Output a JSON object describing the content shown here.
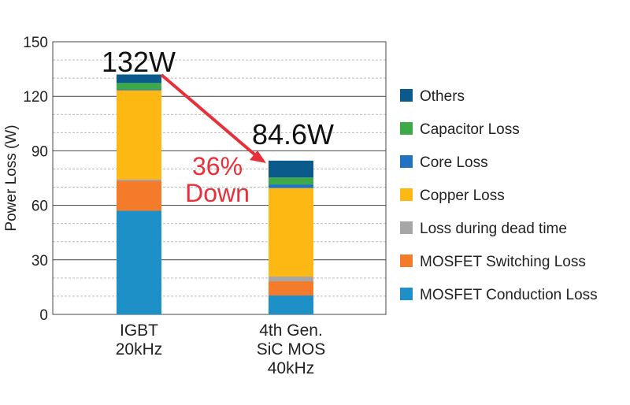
{
  "chart_data": {
    "type": "bar",
    "stacked": true,
    "ylabel": "Power Loss (W)",
    "ylim": [
      0,
      150
    ],
    "yticks": [
      0,
      30,
      60,
      90,
      120,
      150
    ],
    "categories": [
      [
        "IGBT",
        "20kHz"
      ],
      [
        "4th Gen.",
        "SiC MOS",
        "40kHz"
      ]
    ],
    "totals_labels": [
      "132W",
      "84.6W"
    ],
    "annotation": [
      "36%",
      "Down"
    ],
    "legend_position": "right",
    "series": [
      {
        "name": "MOSFET Conduction Loss",
        "color": "#1e90c8",
        "values": [
          57,
          10.4
        ]
      },
      {
        "name": "MOSFET Switching Loss",
        "color": "#f47b2a",
        "values": [
          16.5,
          7.8
        ]
      },
      {
        "name": "Loss during dead time",
        "color": "#a6a6a6",
        "values": [
          0.8,
          2.6
        ]
      },
      {
        "name": "Copper Loss",
        "color": "#fdb813",
        "values": [
          49,
          48.7
        ]
      },
      {
        "name": "Core Loss",
        "color": "#2173c2",
        "values": [
          0.5,
          2
        ]
      },
      {
        "name": "Capacitor Loss",
        "color": "#3daa47",
        "values": [
          3.5,
          3.8
        ]
      },
      {
        "name": "Others",
        "color": "#0a5a8c",
        "values": [
          4.7,
          9.3
        ]
      }
    ],
    "grid": true
  }
}
